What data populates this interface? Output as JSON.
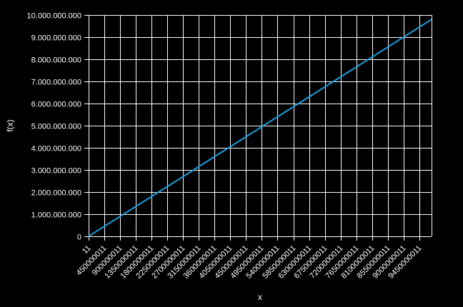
{
  "chart_data": {
    "type": "line",
    "title": "",
    "xlabel": "x",
    "ylabel": "f(x)",
    "x_ticks": [
      "11",
      "450000011",
      "900000011",
      "1350000011",
      "1800000011",
      "2250000011",
      "2700000011",
      "3150000011",
      "3600000011",
      "4050000011",
      "4500000011",
      "4950000011",
      "5400000011",
      "5850000011",
      "6300000011",
      "6750000011",
      "7200000011",
      "7650000011",
      "8100000011",
      "8550000011",
      "9000000011",
      "9450000011"
    ],
    "y_ticks": [
      "0",
      "1.000.000.000",
      "2.000.000.000",
      "3.000.000.000",
      "4.000.000.000",
      "5.000.000.000",
      "6.000.000.000",
      "7.000.000.000",
      "8.000.000.000",
      "9.000.000.000",
      "10.000.000.000"
    ],
    "xlim": [
      11,
      9800000011
    ],
    "ylim": [
      0,
      10000000000
    ],
    "grid": true,
    "series": [
      {
        "color": "#1a9fe0",
        "x": [
          11,
          9800000011
        ],
        "y": [
          0,
          9800000000
        ]
      }
    ]
  }
}
